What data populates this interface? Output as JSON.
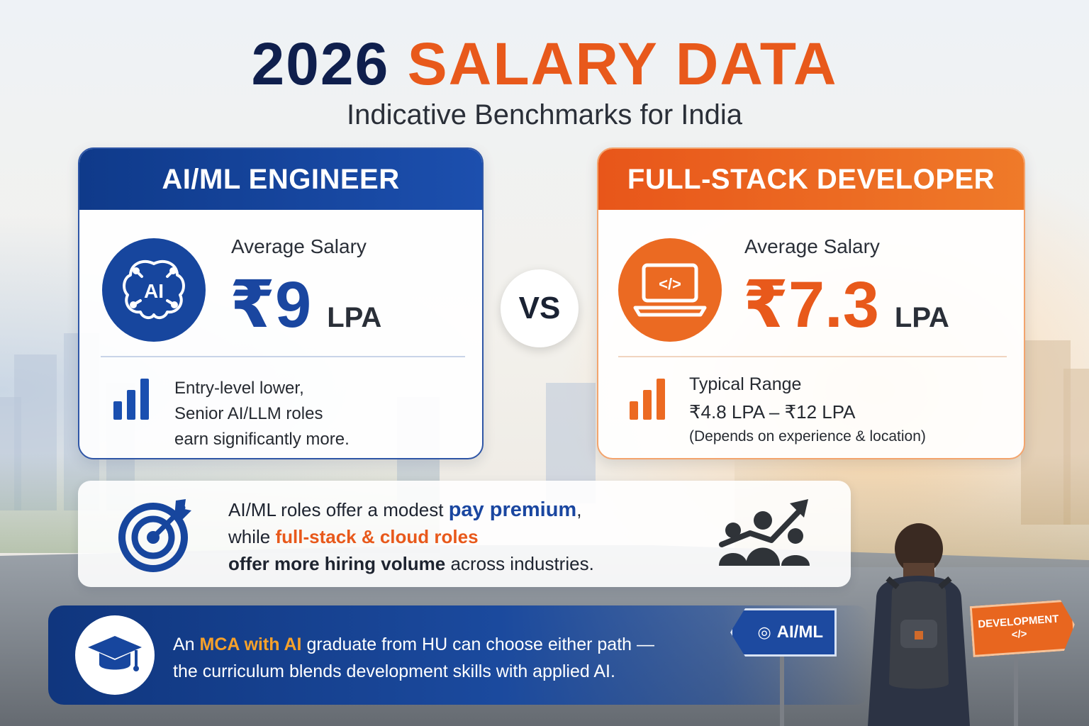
{
  "header": {
    "title_year": "2026",
    "title_main": "SALARY DATA",
    "subtitle": "Indicative Benchmarks for India"
  },
  "ai_card": {
    "title": "AI/ML ENGINEER",
    "icon_label": "AI",
    "avg_label": "Average Salary",
    "amount": "₹9",
    "unit": "LPA",
    "note_lines": [
      "Entry-level lower,",
      "Senior AI/LLM roles",
      "earn significantly more."
    ]
  },
  "vs_label": "VS",
  "fs_card": {
    "title": "FULL-STACK DEVELOPER",
    "icon_label": "</>",
    "avg_label": "Average Salary",
    "amount": "₹7.3",
    "unit": "LPA",
    "range_label": "Typical Range",
    "range": "₹4.8 LPA – ₹12 LPA",
    "range_note": "(Depends on experience & location)"
  },
  "insight": {
    "line1_a": "AI/ML roles offer a modest ",
    "line1_b": "pay premium",
    "line1_c": ",",
    "line2_a": "while ",
    "line2_b": "full-stack & cloud roles",
    "line3_a": "offer more hiring volume",
    "line3_b": " across industries."
  },
  "banner": {
    "line1_a": "An ",
    "line1_b": "MCA with AI",
    "line1_c": " graduate from HU can choose either path —",
    "line2": "the curriculum blends development skills with applied AI."
  },
  "signs": {
    "ai": "AI/ML",
    "dev": "DEVELOPMENT",
    "dev_code": "</>"
  },
  "colors": {
    "navy": "#0f1f4d",
    "blue": "#1a46a0",
    "orange": "#e8591b"
  }
}
